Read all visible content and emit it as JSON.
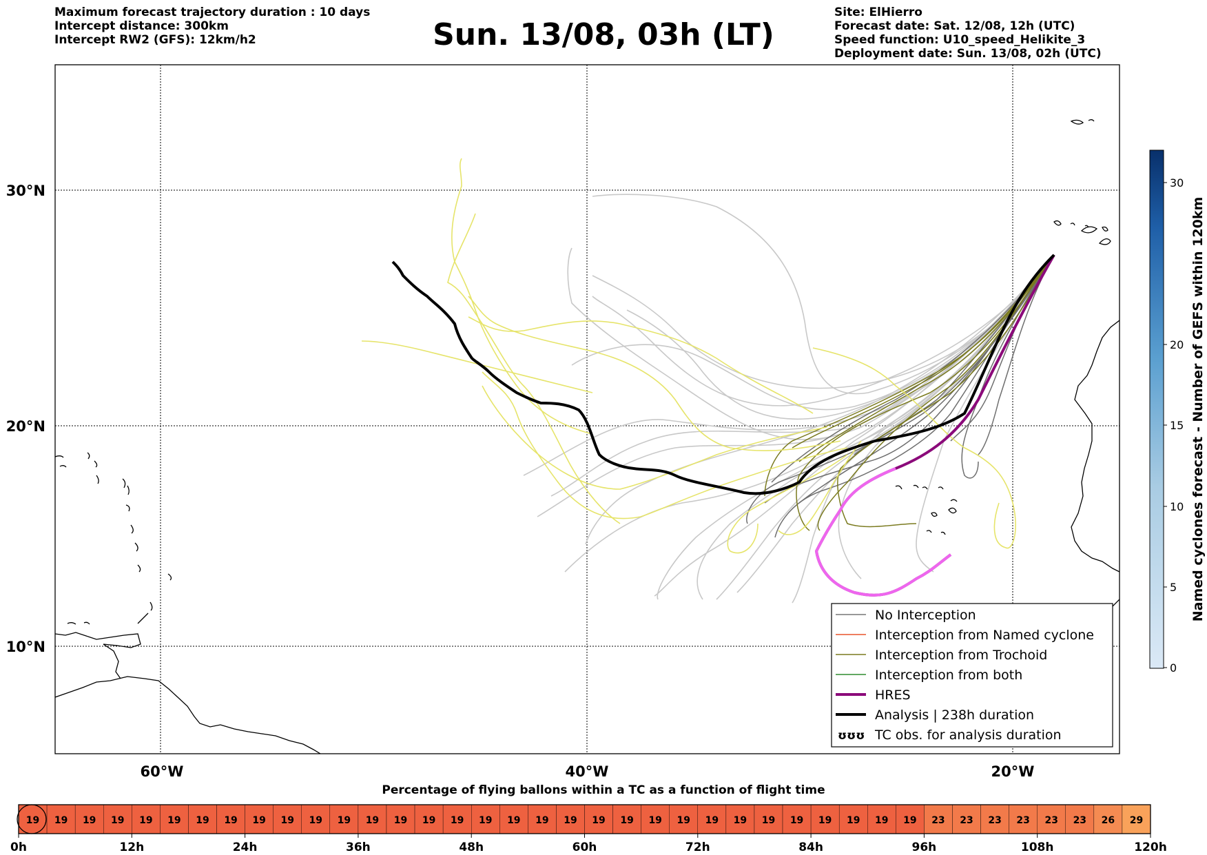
{
  "header_left": [
    "Maximum forecast trajectory duration : 10 days",
    "Intercept distance: 300km",
    "Intercept RW2 (GFS):  12km/h2"
  ],
  "title": "Sun. 13/08, 03h (LT)",
  "header_right": [
    "Site: ElHierro",
    "Forecast date: Sat. 12/08, 12h (UTC)",
    "Speed function: U10_speed_Helikite_3",
    "Deployment date: Sun. 13/08, 02h (UTC)"
  ],
  "map": {
    "lon_ticks": [
      "60°W",
      "40°W",
      "20°W"
    ],
    "lat_ticks": [
      "30°N",
      "20°N",
      "10°N"
    ],
    "gridlines": "dotted"
  },
  "legend": [
    {
      "label": "No Interception",
      "color": "#777777",
      "width": 1.5
    },
    {
      "label": "Interception from Named cyclone",
      "color": "#e8542a",
      "width": 1.5
    },
    {
      "label": "Interception from Trochoid",
      "color": "#7a7a1e",
      "width": 1.5
    },
    {
      "label": "Interception from both",
      "color": "#2e8b2e",
      "width": 1.5
    },
    {
      "label": "HRES",
      "color": "#8b0a7a",
      "width": 4
    },
    {
      "label": "Analysis | 238h duration",
      "color": "#000000",
      "width": 4
    },
    {
      "label": "TC obs. for analysis duration",
      "symbol": "tc-symbols-icon"
    }
  ],
  "colorbar": {
    "label": "Named cyclones forecast - Number of GEFS within 120km",
    "ticks": [
      "0",
      "5",
      "10",
      "15",
      "20",
      "30"
    ],
    "color_low": "#dbe9f6",
    "color_high": "#08306b"
  },
  "timeline": {
    "caption": "Percentage of flying ballons within a TC as a function of flight time",
    "cells": [
      19,
      19,
      19,
      19,
      19,
      19,
      19,
      19,
      19,
      19,
      19,
      19,
      19,
      19,
      19,
      19,
      19,
      19,
      19,
      19,
      19,
      19,
      19,
      19,
      19,
      19,
      19,
      19,
      19,
      19,
      19,
      19,
      23,
      23,
      23,
      23,
      23,
      23,
      26,
      29
    ],
    "ticks": [
      "0h",
      "12h",
      "24h",
      "36h",
      "48h",
      "60h",
      "72h",
      "84h",
      "96h",
      "108h",
      "120h"
    ],
    "colors": {
      "19": "#ee6140",
      "23": "#f27a4a",
      "26": "#f58b52",
      "29": "#f9a25a"
    }
  }
}
